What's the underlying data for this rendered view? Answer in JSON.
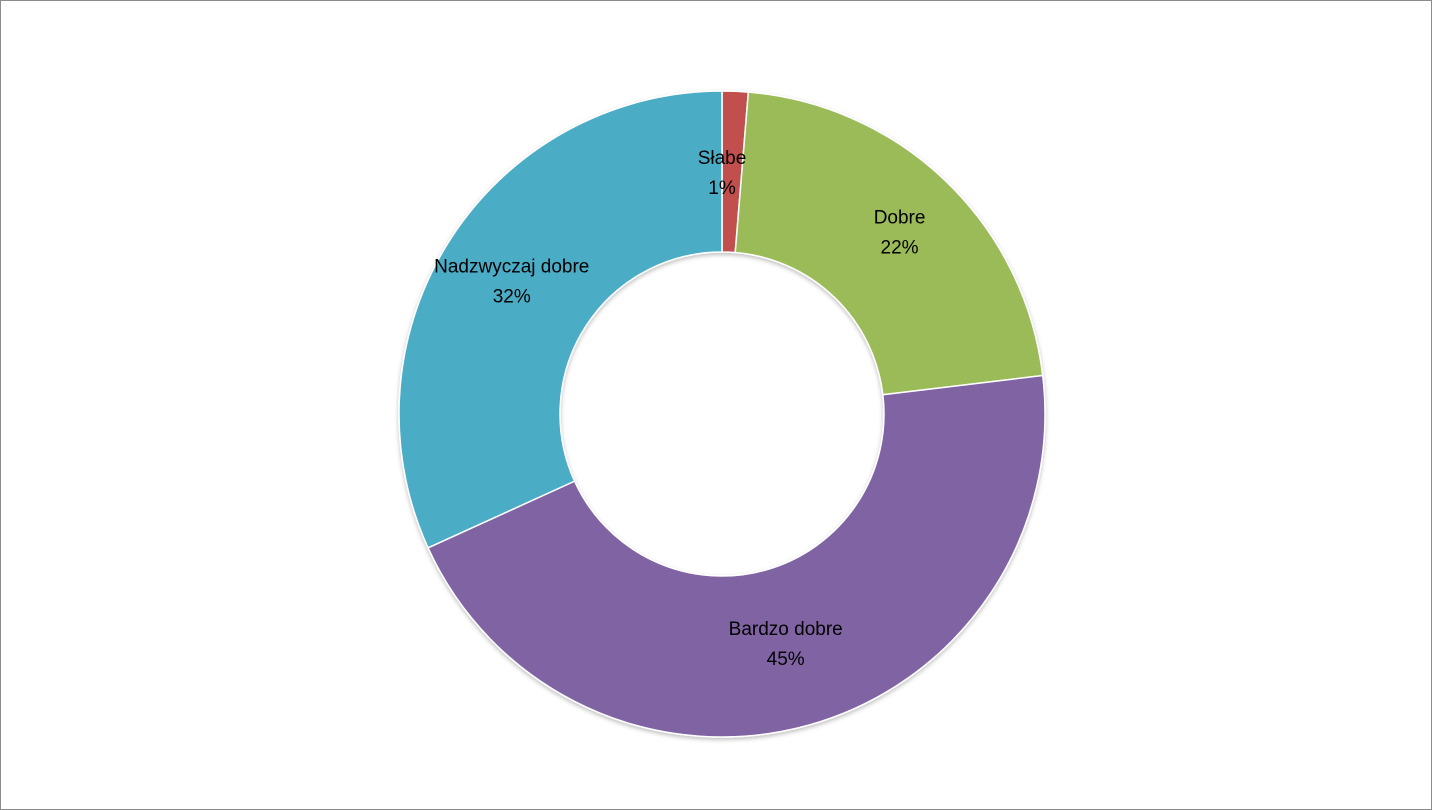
{
  "chart_data": {
    "type": "pie",
    "variant": "donut",
    "title": "",
    "legend": "none",
    "slices": [
      {
        "label": "Słabe",
        "value": 1.3,
        "percent_label": "1%",
        "color": "#c0504d"
      },
      {
        "label": "Dobre",
        "value": 21.8,
        "percent_label": "22%",
        "color": "#9bbb59"
      },
      {
        "label": "Bardzo dobre",
        "value": 45.1,
        "percent_label": "45%",
        "color": "#8064a2"
      },
      {
        "label": "Nadzwyczaj dobre",
        "value": 31.8,
        "percent_label": "32%",
        "color": "#4bacc6"
      }
    ]
  }
}
